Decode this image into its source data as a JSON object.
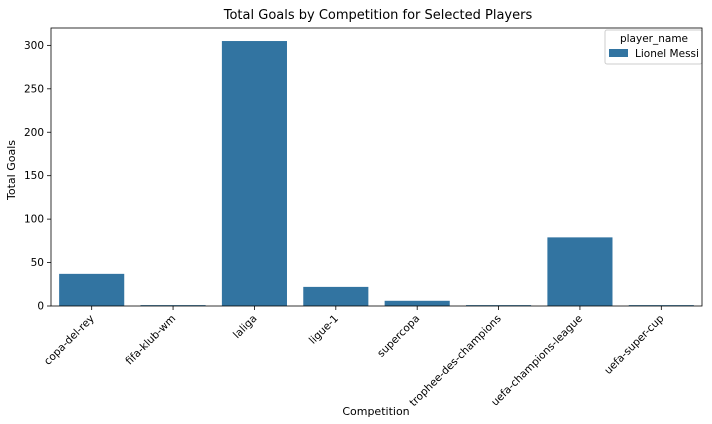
{
  "chart_data": {
    "type": "bar",
    "title": "Total Goals by Competition for Selected Players",
    "xlabel": "Competition",
    "ylabel": "Total Goals",
    "categories": [
      "copa-del-rey",
      "fifa-klub-wm",
      "laliga",
      "ligue-1",
      "supercopa",
      "trophee-des-champions",
      "uefa-champions-league",
      "uefa-super-cup"
    ],
    "series": [
      {
        "name": "Lionel Messi",
        "values": [
          37,
          1,
          305,
          22,
          6,
          1,
          79,
          1
        ],
        "color": "#3274a1"
      }
    ],
    "ylim": [
      0,
      320
    ],
    "yticks": [
      0,
      50,
      100,
      150,
      200,
      250,
      300
    ],
    "grid": false,
    "legend": {
      "title": "player_name",
      "position": "top-right"
    }
  }
}
